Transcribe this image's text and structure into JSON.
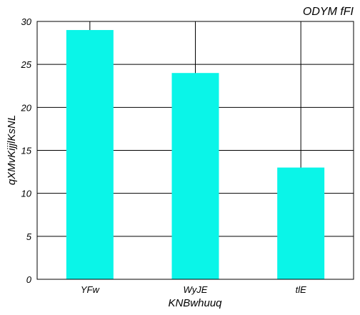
{
  "chart_data": {
    "type": "bar",
    "title": "ODYM fFI",
    "xlabel": "KNBwhuuq",
    "ylabel": "qXMvKijjlKsNL",
    "categories": [
      "YFw",
      "WyJE",
      "tlE"
    ],
    "values": [
      29,
      24,
      13
    ],
    "ylim": [
      0,
      30
    ],
    "yticks": [
      0,
      5,
      10,
      15,
      20,
      25,
      30
    ],
    "grid": true,
    "legend": "none",
    "bar_color": "#0af5e8"
  }
}
